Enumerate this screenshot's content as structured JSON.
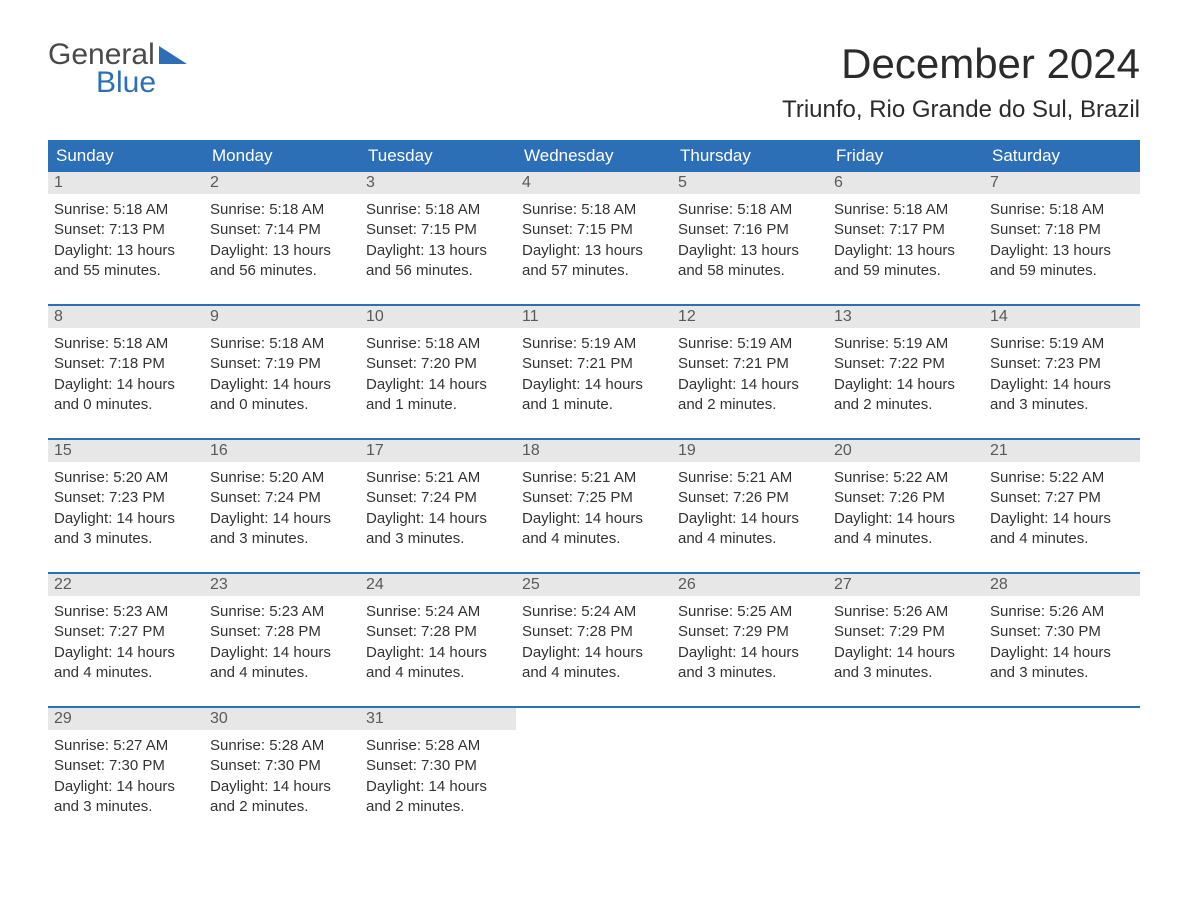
{
  "brand": {
    "word1": "General",
    "word2": "Blue",
    "word1_color": "#4a4a4a",
    "word2_color": "#2d6fb6",
    "triangle_color": "#2d6fb6"
  },
  "title": "December 2024",
  "location": "Triunfo, Rio Grande do Sul, Brazil",
  "colors": {
    "header_bg": "#2d6fb6",
    "header_fg": "#ffffff",
    "row_rule": "#2d6fb6",
    "daynum_bg": "#e7e7e7",
    "daynum_fg": "#5a5a5a",
    "body_fg": "#333333",
    "page_bg": "#ffffff"
  },
  "typography": {
    "title_fontsize": 42,
    "location_fontsize": 24,
    "dow_fontsize": 17,
    "daynum_fontsize": 16,
    "body_fontsize": 15,
    "logo_fontsize": 30
  },
  "calendar": {
    "type": "table",
    "columns": [
      "Sunday",
      "Monday",
      "Tuesday",
      "Wednesday",
      "Thursday",
      "Friday",
      "Saturday"
    ],
    "weeks": [
      [
        {
          "n": "1",
          "sunrise": "Sunrise: 5:18 AM",
          "sunset": "Sunset: 7:13 PM",
          "dl1": "Daylight: 13 hours",
          "dl2": "and 55 minutes."
        },
        {
          "n": "2",
          "sunrise": "Sunrise: 5:18 AM",
          "sunset": "Sunset: 7:14 PM",
          "dl1": "Daylight: 13 hours",
          "dl2": "and 56 minutes."
        },
        {
          "n": "3",
          "sunrise": "Sunrise: 5:18 AM",
          "sunset": "Sunset: 7:15 PM",
          "dl1": "Daylight: 13 hours",
          "dl2": "and 56 minutes."
        },
        {
          "n": "4",
          "sunrise": "Sunrise: 5:18 AM",
          "sunset": "Sunset: 7:15 PM",
          "dl1": "Daylight: 13 hours",
          "dl2": "and 57 minutes."
        },
        {
          "n": "5",
          "sunrise": "Sunrise: 5:18 AM",
          "sunset": "Sunset: 7:16 PM",
          "dl1": "Daylight: 13 hours",
          "dl2": "and 58 minutes."
        },
        {
          "n": "6",
          "sunrise": "Sunrise: 5:18 AM",
          "sunset": "Sunset: 7:17 PM",
          "dl1": "Daylight: 13 hours",
          "dl2": "and 59 minutes."
        },
        {
          "n": "7",
          "sunrise": "Sunrise: 5:18 AM",
          "sunset": "Sunset: 7:18 PM",
          "dl1": "Daylight: 13 hours",
          "dl2": "and 59 minutes."
        }
      ],
      [
        {
          "n": "8",
          "sunrise": "Sunrise: 5:18 AM",
          "sunset": "Sunset: 7:18 PM",
          "dl1": "Daylight: 14 hours",
          "dl2": "and 0 minutes."
        },
        {
          "n": "9",
          "sunrise": "Sunrise: 5:18 AM",
          "sunset": "Sunset: 7:19 PM",
          "dl1": "Daylight: 14 hours",
          "dl2": "and 0 minutes."
        },
        {
          "n": "10",
          "sunrise": "Sunrise: 5:18 AM",
          "sunset": "Sunset: 7:20 PM",
          "dl1": "Daylight: 14 hours",
          "dl2": "and 1 minute."
        },
        {
          "n": "11",
          "sunrise": "Sunrise: 5:19 AM",
          "sunset": "Sunset: 7:21 PM",
          "dl1": "Daylight: 14 hours",
          "dl2": "and 1 minute."
        },
        {
          "n": "12",
          "sunrise": "Sunrise: 5:19 AM",
          "sunset": "Sunset: 7:21 PM",
          "dl1": "Daylight: 14 hours",
          "dl2": "and 2 minutes."
        },
        {
          "n": "13",
          "sunrise": "Sunrise: 5:19 AM",
          "sunset": "Sunset: 7:22 PM",
          "dl1": "Daylight: 14 hours",
          "dl2": "and 2 minutes."
        },
        {
          "n": "14",
          "sunrise": "Sunrise: 5:19 AM",
          "sunset": "Sunset: 7:23 PM",
          "dl1": "Daylight: 14 hours",
          "dl2": "and 3 minutes."
        }
      ],
      [
        {
          "n": "15",
          "sunrise": "Sunrise: 5:20 AM",
          "sunset": "Sunset: 7:23 PM",
          "dl1": "Daylight: 14 hours",
          "dl2": "and 3 minutes."
        },
        {
          "n": "16",
          "sunrise": "Sunrise: 5:20 AM",
          "sunset": "Sunset: 7:24 PM",
          "dl1": "Daylight: 14 hours",
          "dl2": "and 3 minutes."
        },
        {
          "n": "17",
          "sunrise": "Sunrise: 5:21 AM",
          "sunset": "Sunset: 7:24 PM",
          "dl1": "Daylight: 14 hours",
          "dl2": "and 3 minutes."
        },
        {
          "n": "18",
          "sunrise": "Sunrise: 5:21 AM",
          "sunset": "Sunset: 7:25 PM",
          "dl1": "Daylight: 14 hours",
          "dl2": "and 4 minutes."
        },
        {
          "n": "19",
          "sunrise": "Sunrise: 5:21 AM",
          "sunset": "Sunset: 7:26 PM",
          "dl1": "Daylight: 14 hours",
          "dl2": "and 4 minutes."
        },
        {
          "n": "20",
          "sunrise": "Sunrise: 5:22 AM",
          "sunset": "Sunset: 7:26 PM",
          "dl1": "Daylight: 14 hours",
          "dl2": "and 4 minutes."
        },
        {
          "n": "21",
          "sunrise": "Sunrise: 5:22 AM",
          "sunset": "Sunset: 7:27 PM",
          "dl1": "Daylight: 14 hours",
          "dl2": "and 4 minutes."
        }
      ],
      [
        {
          "n": "22",
          "sunrise": "Sunrise: 5:23 AM",
          "sunset": "Sunset: 7:27 PM",
          "dl1": "Daylight: 14 hours",
          "dl2": "and 4 minutes."
        },
        {
          "n": "23",
          "sunrise": "Sunrise: 5:23 AM",
          "sunset": "Sunset: 7:28 PM",
          "dl1": "Daylight: 14 hours",
          "dl2": "and 4 minutes."
        },
        {
          "n": "24",
          "sunrise": "Sunrise: 5:24 AM",
          "sunset": "Sunset: 7:28 PM",
          "dl1": "Daylight: 14 hours",
          "dl2": "and 4 minutes."
        },
        {
          "n": "25",
          "sunrise": "Sunrise: 5:24 AM",
          "sunset": "Sunset: 7:28 PM",
          "dl1": "Daylight: 14 hours",
          "dl2": "and 4 minutes."
        },
        {
          "n": "26",
          "sunrise": "Sunrise: 5:25 AM",
          "sunset": "Sunset: 7:29 PM",
          "dl1": "Daylight: 14 hours",
          "dl2": "and 3 minutes."
        },
        {
          "n": "27",
          "sunrise": "Sunrise: 5:26 AM",
          "sunset": "Sunset: 7:29 PM",
          "dl1": "Daylight: 14 hours",
          "dl2": "and 3 minutes."
        },
        {
          "n": "28",
          "sunrise": "Sunrise: 5:26 AM",
          "sunset": "Sunset: 7:30 PM",
          "dl1": "Daylight: 14 hours",
          "dl2": "and 3 minutes."
        }
      ],
      [
        {
          "n": "29",
          "sunrise": "Sunrise: 5:27 AM",
          "sunset": "Sunset: 7:30 PM",
          "dl1": "Daylight: 14 hours",
          "dl2": "and 3 minutes."
        },
        {
          "n": "30",
          "sunrise": "Sunrise: 5:28 AM",
          "sunset": "Sunset: 7:30 PM",
          "dl1": "Daylight: 14 hours",
          "dl2": "and 2 minutes."
        },
        {
          "n": "31",
          "sunrise": "Sunrise: 5:28 AM",
          "sunset": "Sunset: 7:30 PM",
          "dl1": "Daylight: 14 hours",
          "dl2": "and 2 minutes."
        },
        null,
        null,
        null,
        null
      ]
    ]
  }
}
